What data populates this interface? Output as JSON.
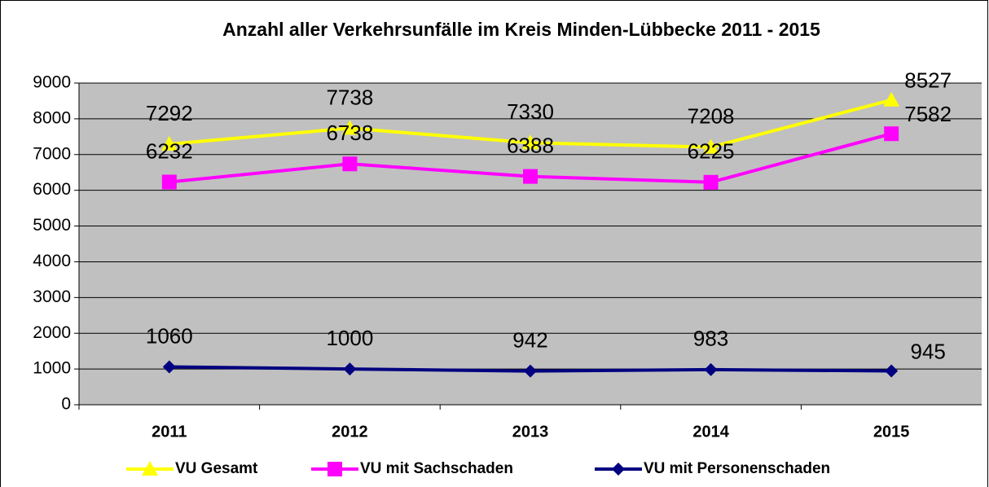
{
  "chart_data": {
    "type": "line",
    "title": "Anzahl aller Verkehrsunfälle im Kreis Minden-Lübbecke 2011 - 2015",
    "categories": [
      "2011",
      "2012",
      "2013",
      "2014",
      "2015"
    ],
    "series": [
      {
        "name": "VU Gesamt",
        "color": "#ffff00",
        "marker": "triangle",
        "values": [
          7292,
          7738,
          7330,
          7208,
          8527
        ]
      },
      {
        "name": "VU mit Sachschaden",
        "color": "#ff00ff",
        "marker": "square",
        "values": [
          6232,
          6738,
          6388,
          6225,
          7582
        ]
      },
      {
        "name": "VU mit Personenschaden",
        "color": "#000080",
        "marker": "diamond",
        "values": [
          1060,
          1000,
          942,
          983,
          945
        ]
      }
    ],
    "ylim": [
      0,
      9000
    ],
    "yticks": [
      0,
      1000,
      2000,
      3000,
      4000,
      5000,
      6000,
      7000,
      8000,
      9000
    ],
    "grid": true,
    "legend": "bottom"
  }
}
